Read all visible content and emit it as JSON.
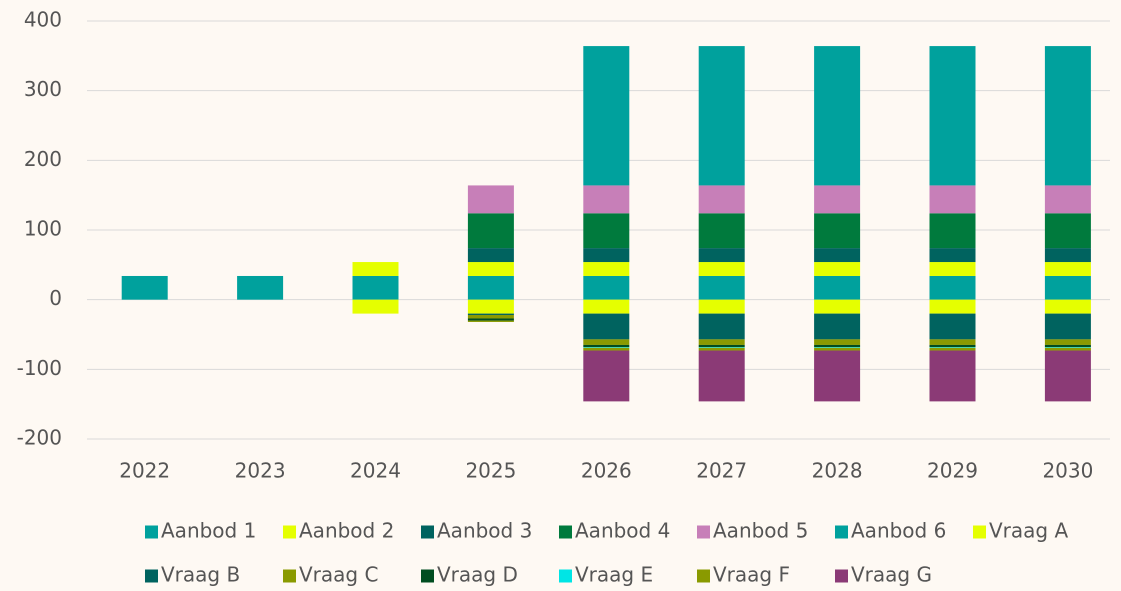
{
  "chart_data": {
    "type": "stacked_bar",
    "categories": [
      "2022",
      "2023",
      "2024",
      "2025",
      "2026",
      "2027",
      "2028",
      "2029",
      "2030"
    ],
    "series": [
      {
        "name": "Aanbod 1",
        "color": "#00A19D",
        "values": [
          34,
          34,
          34,
          34,
          34,
          34,
          34,
          34,
          34
        ]
      },
      {
        "name": "Aanbod 2",
        "color": "#E5FF00",
        "values": [
          0,
          0,
          20,
          20,
          20,
          20,
          20,
          20,
          20
        ]
      },
      {
        "name": "Aanbod 3",
        "color": "#00635F",
        "values": [
          0,
          0,
          0,
          20,
          20,
          20,
          20,
          20,
          20
        ]
      },
      {
        "name": "Aanbod 4",
        "color": "#007A3D",
        "values": [
          0,
          0,
          0,
          50,
          50,
          50,
          50,
          50,
          50
        ]
      },
      {
        "name": "Aanbod 5",
        "color": "#C77FB8",
        "values": [
          0,
          0,
          0,
          40,
          40,
          40,
          40,
          40,
          40
        ]
      },
      {
        "name": "Aanbod 6",
        "color": "#00A19D",
        "values": [
          0,
          0,
          0,
          0,
          200,
          200,
          200,
          200,
          200
        ]
      },
      {
        "name": "Vraag A",
        "color": "#E5FF00",
        "values": [
          0,
          0,
          -20,
          -20,
          -20,
          -20,
          -20,
          -20,
          -20
        ]
      },
      {
        "name": "Vraag B",
        "color": "#00635F",
        "values": [
          0,
          0,
          0,
          -2,
          -37,
          -37,
          -37,
          -37,
          -37
        ]
      },
      {
        "name": "Vraag C",
        "color": "#8A9A00",
        "values": [
          0,
          0,
          0,
          -5,
          -8,
          -8,
          -8,
          -8,
          -8
        ]
      },
      {
        "name": "Vraag D",
        "color": "#004D20",
        "values": [
          0,
          0,
          0,
          -3,
          -3,
          -3,
          -3,
          -3,
          -3
        ]
      },
      {
        "name": "Vraag E",
        "color": "#00E5E5",
        "values": [
          0,
          0,
          0,
          0,
          -1,
          -1,
          -1,
          -1,
          -1
        ]
      },
      {
        "name": "Vraag F",
        "color": "#8A9A00",
        "values": [
          0,
          0,
          0,
          -2,
          -4,
          -4,
          -4,
          -4,
          -4
        ]
      },
      {
        "name": "Vraag G",
        "color": "#8B3A76",
        "values": [
          0,
          0,
          0,
          0,
          -73,
          -73,
          -73,
          -73,
          -73
        ]
      }
    ],
    "ylim": [
      -200,
      400
    ],
    "yticks": [
      -200,
      -100,
      0,
      100,
      200,
      300,
      400
    ],
    "grid": true
  }
}
